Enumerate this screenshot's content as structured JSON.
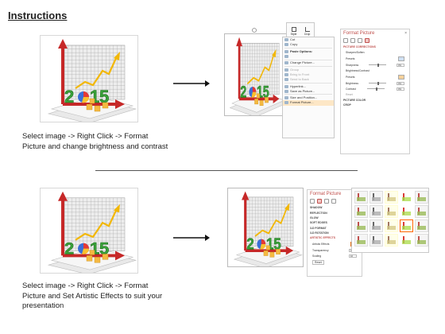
{
  "title": "Instructions",
  "step1": {
    "caption_lines": [
      "Select image -> Right Click -> Format",
      "Picture and change brightness and contrast"
    ],
    "minitoolbar": {
      "style": "Style",
      "crop": "Crop"
    },
    "context_menu": {
      "items": [
        {
          "label": "Cut",
          "icon": "scissors-icon"
        },
        {
          "label": "Copy",
          "icon": "copy-icon"
        },
        {
          "label": "Paste Options:",
          "icon": "paste-icon",
          "bold": true
        },
        {
          "label": "",
          "icon": "paste-picture-icon"
        },
        {
          "label": "Change Picture...",
          "icon": "change-picture-icon"
        },
        {
          "label": "Group",
          "icon": "group-icon",
          "dim": true
        },
        {
          "label": "Bring to Front",
          "icon": "bring-front-icon",
          "dim": true
        },
        {
          "label": "Send to Back",
          "icon": "send-back-icon",
          "dim": true
        },
        {
          "label": "Hyperlink...",
          "icon": "hyperlink-icon"
        },
        {
          "label": "Save as Picture...",
          "icon": "save-picture-icon"
        },
        {
          "label": "Size and Position...",
          "icon": "size-position-icon"
        },
        {
          "label": "Format Picture...",
          "icon": "format-picture-icon",
          "highlight": true
        }
      ]
    },
    "format_pane": {
      "title": "Format Picture",
      "close": "×",
      "section_open": "PICTURE CORRECTIONS",
      "sharpen_soften": "Sharpen/Soften",
      "presets": "Presets",
      "sharpness": "Sharpness",
      "sharpness_value": "0%",
      "brightness_contrast": "Brightness/Contrast",
      "brightness": "Brightness",
      "brightness_value": "0%",
      "contrast": "Contrast",
      "contrast_value": "0%",
      "reset": "Reset",
      "section_color": "PICTURE COLOR",
      "section_crop": "CROP"
    }
  },
  "step2": {
    "caption_lines": [
      "Select image -> Right Click -> Format",
      "Picture and Set Artistic Effects to suit your",
      "presentation"
    ],
    "format_pane": {
      "title": "Format Picture",
      "close": "×",
      "sections": [
        "SHADOW",
        "REFLECTION",
        "GLOW",
        "SOFT EDGES",
        "3-D FORMAT",
        "3-D ROTATION"
      ],
      "section_open": "ARTISTIC EFFECTS",
      "artistic_effects": "Artistic Effects",
      "transparency": "Transparency",
      "transparency_value": "0%",
      "scaling": "Scaling",
      "scaling_value": "10",
      "reset": "Reset"
    },
    "gallery_count": 20
  },
  "colors": {
    "accent": "#c0504d",
    "grid": "#9e9e9e",
    "green": "#3aa23a",
    "red_arrow": "#c62828",
    "yellow": "#f2b705"
  }
}
